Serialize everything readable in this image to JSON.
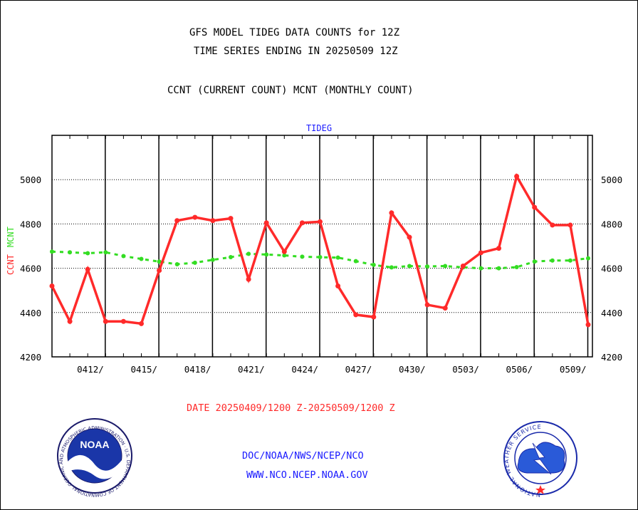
{
  "header": {
    "title_line1": "GFS MODEL TIDEG DATA COUNTS for 12Z",
    "title_line2": "TIME SERIES ENDING IN 20250509 12Z",
    "subtitle": "CCNT (CURRENT COUNT) MCNT (MONTHLY COUNT)"
  },
  "footer": {
    "date_range": "DATE 20250409/1200 Z-20250509/1200 Z",
    "org_line1": "DOC/NOAA/NWS/NCEP/NCO",
    "org_line2": "WWW.NCO.NCEP.NOAA.GOV"
  },
  "logos": {
    "noaa": {
      "center_text": "NOAA",
      "ring_text": "NATIONAL OCEANIC AND ATMOSPHERIC ADMINISTRATION · U.S. DEPARTMENT OF COMMERCE"
    },
    "nws": {
      "ring_text": "NATIONAL WEATHER SERVICE"
    }
  },
  "colors": {
    "ccnt": "#ff2a2a",
    "mcnt": "#33dd22",
    "label_blue": "#1a1aff",
    "date_red": "#ff2a2a"
  },
  "chart_data": {
    "type": "line",
    "title": "TIDEG",
    "ylabel_parts": [
      "CCNT",
      "MCNT"
    ],
    "ylim": [
      4200,
      5200
    ],
    "yticks": [
      4200,
      4400,
      4600,
      4800,
      5000
    ],
    "xlim": [
      0,
      30
    ],
    "xticks": [
      {
        "x": 3,
        "label": "0412/"
      },
      {
        "x": 6,
        "label": "0415/"
      },
      {
        "x": 9,
        "label": "0418/"
      },
      {
        "x": 12,
        "label": "0421/"
      },
      {
        "x": 15,
        "label": "0424/"
      },
      {
        "x": 18,
        "label": "0427/"
      },
      {
        "x": 21,
        "label": "0430/"
      },
      {
        "x": 24,
        "label": "0503/"
      },
      {
        "x": 27,
        "label": "0506/"
      },
      {
        "x": 30,
        "label": "0509/"
      }
    ],
    "grid": true,
    "series": [
      {
        "name": "CCNT",
        "style": "solid",
        "x": [
          0,
          1,
          2,
          3,
          4,
          5,
          6,
          7,
          8,
          9,
          10,
          11,
          12,
          13,
          14,
          15,
          16,
          17,
          18,
          19,
          20,
          21,
          22,
          23,
          24,
          25,
          26,
          27,
          28,
          29,
          30
        ],
        "values": [
          4520,
          4360,
          4595,
          4360,
          4360,
          4350,
          4590,
          4815,
          4830,
          4815,
          4825,
          4550,
          4805,
          4675,
          4805,
          4810,
          4520,
          4390,
          4380,
          4850,
          4740,
          4435,
          4420,
          4610,
          4670,
          4690,
          5015,
          4875,
          4795,
          4795,
          4345
        ]
      },
      {
        "name": "MCNT",
        "style": "dotted",
        "x": [
          0,
          1,
          2,
          3,
          4,
          5,
          6,
          7,
          8,
          9,
          10,
          11,
          12,
          13,
          14,
          15,
          16,
          17,
          18,
          19,
          20,
          21,
          22,
          23,
          24,
          25,
          26,
          27,
          28,
          29,
          30
        ],
        "values": [
          4675,
          4672,
          4668,
          4672,
          4655,
          4642,
          4630,
          4618,
          4625,
          4638,
          4650,
          4665,
          4662,
          4658,
          4652,
          4650,
          4648,
          4632,
          4615,
          4604,
          4610,
          4608,
          4610,
          4604,
          4600,
          4600,
          4605,
          4630,
          4635,
          4635,
          4645
        ]
      }
    ]
  }
}
